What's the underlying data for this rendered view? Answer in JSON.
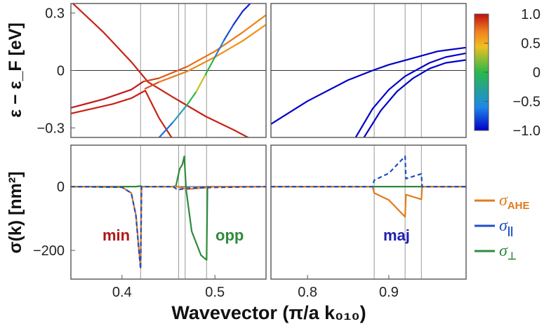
{
  "chart_data": [
    {
      "type": "line",
      "title": "",
      "ylabel": "ε − ε_F [eV]",
      "ylim": [
        -0.35,
        0.35
      ],
      "yticks": [
        {
          "value": 0.3,
          "label": "0.3"
        },
        {
          "value": 0,
          "label": "0"
        },
        {
          "value": -0.3,
          "label": "−0.3"
        }
      ],
      "colorbar": {
        "min": -1.0,
        "max": 1.0,
        "ticks": [
          {
            "value": 1.0,
            "label": "1.0"
          },
          {
            "value": 0.5,
            "label": "0.5"
          },
          {
            "value": 0,
            "label": "0"
          },
          {
            "value": -0.5,
            "label": "−0.5"
          },
          {
            "value": -1.0,
            "label": "−1.0"
          }
        ],
        "colors": [
          "#0000c8",
          "#1e88e8",
          "#2ab84a",
          "#f0c020",
          "#f08020",
          "#c01010"
        ]
      },
      "left_panel": {
        "xlim": [
          0.345,
          0.555
        ],
        "vlines": [
          0.42,
          0.461,
          0.468,
          0.491
        ],
        "bands": [
          {
            "name": "minority-steep",
            "color_value": 0.95,
            "x": [
              0.345,
              0.38,
              0.41,
              0.428,
              0.455,
              0.49,
              0.52,
              0.555
            ],
            "y": [
              0.36,
              0.2,
              0.045,
              -0.06,
              -0.14,
              -0.24,
              -0.31,
              -0.4
            ]
          },
          {
            "name": "lower-red",
            "color_value": 0.95,
            "x": [
              0.345,
              0.39,
              0.41,
              0.425,
              0.44,
              0.46
            ],
            "y": [
              -0.225,
              -0.175,
              -0.145,
              -0.105,
              -0.25,
              -0.4
            ]
          },
          {
            "name": "upper-red-orange",
            "color_value": 0.75,
            "x": [
              0.345,
              0.38,
              0.41,
              0.423,
              0.44,
              0.47,
              0.5,
              0.53,
              0.555
            ],
            "y": [
              -0.195,
              -0.15,
              -0.1,
              -0.058,
              -0.04,
              0.02,
              0.1,
              0.2,
              0.29
            ],
            "colors": [
              "#c21a1a",
              "#c21a1a",
              "#c21a1a",
              "#c21a1a",
              "#d0401a",
              "#e05818",
              "#e86e18",
              "#ec7a1a",
              "#ee801a"
            ]
          },
          {
            "name": "middle-orange",
            "color_value": 0.6,
            "x": [
              0.425,
              0.44,
              0.47,
              0.5,
              0.53,
              0.555
            ],
            "y": [
              -0.095,
              -0.06,
              -0.005,
              0.07,
              0.155,
              0.24
            ],
            "colors": [
              "#c21a1a",
              "#d85020",
              "#e8781a",
              "#ee8a18",
              "#f0901a",
              "#f09018"
            ]
          },
          {
            "name": "crossing-band",
            "color_value": 0.0,
            "x": [
              0.44,
              0.455,
              0.47,
              0.48,
              0.49,
              0.5,
              0.51,
              0.52,
              0.53,
              0.54
            ],
            "y": [
              -0.35,
              -0.27,
              -0.18,
              -0.11,
              -0.02,
              0.07,
              0.16,
              0.24,
              0.31,
              0.36
            ],
            "colors": [
              "#1a40d0",
              "#1e6ad8",
              "#22a0b8",
              "#2ab84a",
              "#c8c020",
              "#2ab84a",
              "#2080d8",
              "#1a50d8",
              "#1030d0",
              "#1020c8"
            ]
          }
        ]
      },
      "right_panel": {
        "xlim": [
          0.755,
          0.995
        ],
        "vlines": [
          0.882,
          0.92,
          0.94
        ],
        "bands": [
          {
            "name": "maj-1",
            "color_value": -1.0,
            "x": [
              0.755,
              0.8,
              0.85,
              0.88,
              0.9,
              0.93,
              0.96,
              0.995
            ],
            "y": [
              -0.28,
              -0.16,
              -0.05,
              0.0,
              0.03,
              0.065,
              0.1,
              0.12
            ]
          },
          {
            "name": "maj-2",
            "color_value": -1.0,
            "x": [
              0.855,
              0.88,
              0.9,
              0.92,
              0.95,
              0.97,
              0.995
            ],
            "y": [
              -0.38,
              -0.2,
              -0.1,
              -0.03,
              0.04,
              0.07,
              0.09
            ]
          },
          {
            "name": "maj-3",
            "color_value": -1.0,
            "x": [
              0.865,
              0.89,
              0.91,
              0.93,
              0.95,
              0.97,
              0.995
            ],
            "y": [
              -0.38,
              -0.21,
              -0.11,
              -0.04,
              0.01,
              0.04,
              0.055
            ]
          }
        ]
      }
    },
    {
      "type": "line",
      "title": "",
      "ylabel": "σ(k) [nm²]",
      "xlabel": "Wavevector (π/a k₀₁₀)",
      "ylim": [
        -290,
        130
      ],
      "yticks": [
        {
          "value": 0,
          "label": "0"
        },
        {
          "value": -200,
          "label": "−200"
        }
      ],
      "left_panel": {
        "xlim": [
          0.345,
          0.555
        ],
        "xticks": [
          {
            "value": 0.4,
            "label": "0.4"
          },
          {
            "value": 0.5,
            "label": "0.5"
          }
        ],
        "vlines": [
          0.42,
          0.461,
          0.468,
          0.491
        ],
        "series": [
          {
            "name": "σ_AHE",
            "color": "#e07b1e",
            "dash": false,
            "x": [
              0.345,
              0.4,
              0.41,
              0.415,
              0.418,
              0.42,
              0.421,
              0.46,
              0.47,
              0.49,
              0.495,
              0.555
            ],
            "y": [
              0,
              -2,
              -20,
              -90,
              -190,
              -255,
              0,
              0,
              -8,
              -3,
              0,
              0
            ]
          },
          {
            "name": "σ_∥",
            "color": "#1f4fc4",
            "dash": true,
            "x": [
              0.345,
              0.4,
              0.41,
              0.415,
              0.418,
              0.42,
              0.421,
              0.455,
              0.46,
              0.47,
              0.49,
              0.555
            ],
            "y": [
              0,
              -2,
              -20,
              -92,
              -195,
              -258,
              0,
              0,
              -10,
              -5,
              -3,
              0
            ]
          },
          {
            "name": "σ_⊥",
            "color": "#2e8b3a",
            "dash": false,
            "x": [
              0.345,
              0.415,
              0.42,
              0.421,
              0.455,
              0.458,
              0.462,
              0.465,
              0.467,
              0.469,
              0.475,
              0.485,
              0.491,
              0.492,
              0.555
            ],
            "y": [
              0,
              0,
              2,
              0,
              0,
              2,
              55,
              70,
              95,
              -10,
              -140,
              -215,
              -230,
              0,
              0
            ]
          }
        ],
        "annotations": [
          {
            "text": "min",
            "color": "#b01818"
          },
          {
            "text": "opp",
            "color": "#2e8b3a"
          }
        ]
      },
      "right_panel": {
        "xlim": [
          0.755,
          0.995
        ],
        "xticks": [
          {
            "value": 0.8,
            "label": "0.8"
          },
          {
            "value": 0.9,
            "label": "0.9"
          }
        ],
        "vlines": [
          0.882,
          0.92,
          0.94
        ],
        "series": [
          {
            "name": "σ_AHE",
            "color": "#e07b1e",
            "dash": false,
            "x": [
              0.755,
              0.88,
              0.882,
              0.9,
              0.92,
              0.921,
              0.94,
              0.941,
              0.995
            ],
            "y": [
              0,
              0,
              -20,
              -42,
              -95,
              -25,
              -40,
              0,
              0
            ]
          },
          {
            "name": "σ_∥",
            "color": "#1f4fc4",
            "dash": true,
            "x": [
              0.755,
              0.88,
              0.882,
              0.9,
              0.92,
              0.921,
              0.94,
              0.941,
              0.995
            ],
            "y": [
              0,
              0,
              20,
              42,
              95,
              25,
              40,
              0,
              0
            ]
          },
          {
            "name": "σ_⊥",
            "color": "#2e8b3a",
            "dash": false,
            "x": [
              0.755,
              0.995
            ],
            "y": [
              0,
              0
            ]
          }
        ],
        "annotations": [
          {
            "text": "maj",
            "color": "#2020b0"
          }
        ]
      },
      "legend": [
        {
          "symbol": "σ",
          "sub": "AHE",
          "color": "#e07b1e"
        },
        {
          "symbol": "σ",
          "sub": "||",
          "color": "#1f4fc4"
        },
        {
          "symbol": "σ",
          "sub": "⊥",
          "color": "#2e8b3a"
        }
      ]
    }
  ]
}
